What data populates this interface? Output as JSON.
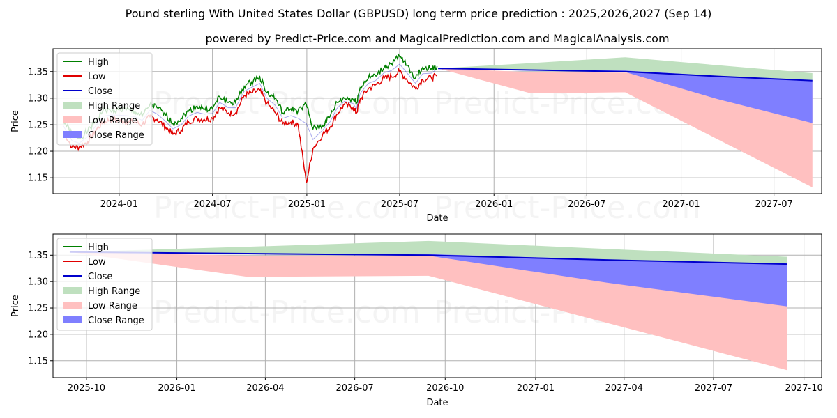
{
  "title": "Pound sterling With United States Dollar (GBPUSD) long term price prediction : 2025,2026,2027 (Sep 14)",
  "subtitle": "powered by Predict-Price.com and MagicalPrediction.com and MagicalAnalysis.com",
  "watermark": "Predict-Price.com",
  "colors": {
    "high": "#008000",
    "low": "#e00000",
    "close": "#0000cc",
    "high_range": "#bfe0bf",
    "low_range": "#ffc0c0",
    "close_range": "#7f7fff"
  },
  "legend_items": [
    {
      "label": "High",
      "kind": "line",
      "color_key": "high"
    },
    {
      "label": "Low",
      "kind": "line",
      "color_key": "low"
    },
    {
      "label": "Close",
      "kind": "line",
      "color_key": "close"
    },
    {
      "label": "High Range",
      "kind": "patch",
      "color_key": "high_range"
    },
    {
      "label": "Low Range",
      "kind": "patch",
      "color_key": "low_range"
    },
    {
      "label": "Close Range",
      "kind": "patch",
      "color_key": "close_range"
    }
  ],
  "chart_data": [
    {
      "type": "line",
      "xlabel": "Date",
      "ylabel": "Price",
      "grid": true,
      "legend": "upper-left",
      "xlim": [
        "2023-08-25",
        "2027-10-02"
      ],
      "ylim": [
        1.12,
        1.393
      ],
      "x_ticks": [
        "2024-01",
        "2024-07",
        "2025-01",
        "2025-07",
        "2026-01",
        "2026-07",
        "2027-01",
        "2027-07"
      ],
      "y_ticks": [
        1.15,
        1.2,
        1.25,
        1.3,
        1.35
      ],
      "history": {
        "dates": [
          "2023-09-14",
          "2023-10-01",
          "2023-10-15",
          "2023-11-01",
          "2023-11-15",
          "2023-12-01",
          "2023-12-15",
          "2024-01-01",
          "2024-01-15",
          "2024-02-01",
          "2024-02-15",
          "2024-03-01",
          "2024-03-15",
          "2024-04-01",
          "2024-04-15",
          "2024-05-01",
          "2024-05-15",
          "2024-06-01",
          "2024-06-15",
          "2024-07-01",
          "2024-07-15",
          "2024-08-01",
          "2024-08-15",
          "2024-09-01",
          "2024-09-15",
          "2024-10-01",
          "2024-10-15",
          "2024-11-01",
          "2024-11-15",
          "2024-12-01",
          "2024-12-15",
          "2024-12-31",
          "2025-01-13",
          "2025-02-01",
          "2025-02-15",
          "2025-03-01",
          "2025-03-15",
          "2025-04-01",
          "2025-04-08",
          "2025-04-15",
          "2025-05-01",
          "2025-05-15",
          "2025-06-01",
          "2025-06-15",
          "2025-07-01",
          "2025-07-15",
          "2025-08-01",
          "2025-08-15",
          "2025-09-01",
          "2025-09-12"
        ],
        "high": [
          1.258,
          1.232,
          1.225,
          1.238,
          1.255,
          1.278,
          1.276,
          1.278,
          1.278,
          1.275,
          1.266,
          1.288,
          1.282,
          1.268,
          1.252,
          1.262,
          1.275,
          1.285,
          1.28,
          1.28,
          1.303,
          1.292,
          1.292,
          1.322,
          1.33,
          1.342,
          1.31,
          1.3,
          1.272,
          1.28,
          1.276,
          1.288,
          1.242,
          1.248,
          1.265,
          1.292,
          1.3,
          1.298,
          1.292,
          1.32,
          1.338,
          1.342,
          1.358,
          1.365,
          1.378,
          1.362,
          1.338,
          1.358,
          1.356,
          1.36
        ],
        "low": [
          1.238,
          1.208,
          1.208,
          1.218,
          1.238,
          1.255,
          1.26,
          1.258,
          1.256,
          1.255,
          1.25,
          1.265,
          1.26,
          1.245,
          1.232,
          1.24,
          1.256,
          1.262,
          1.26,
          1.262,
          1.282,
          1.272,
          1.272,
          1.305,
          1.31,
          1.315,
          1.29,
          1.272,
          1.252,
          1.255,
          1.25,
          1.14,
          1.205,
          1.232,
          1.245,
          1.27,
          1.288,
          1.282,
          1.272,
          1.298,
          1.318,
          1.325,
          1.338,
          1.34,
          1.35,
          1.335,
          1.318,
          1.335,
          1.338,
          1.342
        ],
        "close": [
          1.248,
          1.22,
          1.215,
          1.228,
          1.246,
          1.266,
          1.268,
          1.268,
          1.267,
          1.265,
          1.258,
          1.277,
          1.27,
          1.256,
          1.242,
          1.25,
          1.266,
          1.273,
          1.27,
          1.271,
          1.292,
          1.282,
          1.282,
          1.313,
          1.32,
          1.328,
          1.3,
          1.286,
          1.262,
          1.267,
          1.262,
          1.252,
          1.222,
          1.24,
          1.255,
          1.281,
          1.294,
          1.29,
          1.28,
          1.309,
          1.328,
          1.333,
          1.348,
          1.352,
          1.364,
          1.348,
          1.328,
          1.346,
          1.347,
          1.355
        ]
      },
      "forecast": {
        "dates": [
          "2025-09-14",
          "2026-03-14",
          "2026-09-14",
          "2027-03-14",
          "2027-09-14"
        ],
        "high_range": {
          "upper": [
            1.356,
            1.366,
            1.377,
            1.362,
            1.347
          ],
          "lower": [
            1.356,
            1.353,
            1.352,
            1.342,
            1.333
          ]
        },
        "low_range": {
          "upper": [
            1.356,
            1.349,
            1.348,
            1.341,
            1.333
          ],
          "lower": [
            1.356,
            1.309,
            1.311,
            1.222,
            1.132
          ]
        },
        "close_range": {
          "upper": [
            1.356,
            1.353,
            1.352,
            1.342,
            1.333
          ],
          "lower": [
            1.356,
            1.352,
            1.349,
            1.298,
            1.253
          ]
        },
        "close": [
          1.356,
          1.353,
          1.35,
          1.341,
          1.333
        ]
      }
    },
    {
      "type": "line",
      "xlabel": "Date",
      "ylabel": "Price",
      "grid": true,
      "legend": "upper-left",
      "xlim": [
        "2025-08-28",
        "2027-10-19"
      ],
      "ylim": [
        1.118,
        1.39
      ],
      "x_ticks": [
        "2025-10",
        "2026-01",
        "2026-04",
        "2026-07",
        "2026-10",
        "2027-01",
        "2027-04",
        "2027-07",
        "2027-10"
      ],
      "y_ticks": [
        1.15,
        1.2,
        1.25,
        1.3,
        1.35
      ],
      "forecast_ref": 0
    }
  ]
}
